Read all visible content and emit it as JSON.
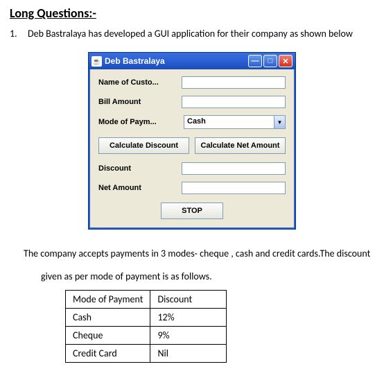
{
  "heading": "Long Questions:-",
  "question": {
    "number": "1.",
    "text": "Deb Bastralaya has developed a GUI application for their company as shown below"
  },
  "window": {
    "title": "Deb Bastralaya",
    "icon_glyph": "☕",
    "buttons": {
      "min": "—",
      "max": "□",
      "close": "✕"
    },
    "fields": {
      "name_label": "Name of Custo...",
      "name_value": "",
      "bill_label": "Bill Amount",
      "bill_value": "",
      "mode_label": "Mode of Paym...",
      "mode_value": "Cash",
      "discount_label": "Discount",
      "discount_value": "",
      "net_label": "Net Amount",
      "net_value": ""
    },
    "buttons_row": {
      "calc_discount": "Calculate Discount",
      "calc_net": "Calculate Net Amount"
    },
    "stop": "STOP"
  },
  "description": {
    "line1": "The company accepts payments in 3 modes- cheque , cash and credit cards.The discount",
    "line2": "given as per mode of payment is as follows."
  },
  "table": {
    "columns": [
      "Mode of Payment",
      "Discount"
    ],
    "rows": [
      [
        "Cash",
        "12%"
      ],
      [
        "Cheque",
        "9%"
      ],
      [
        "Credit Card",
        "Nil"
      ]
    ]
  },
  "colors": {
    "titlebar_start": "#3a6ee0",
    "titlebar_end": "#1b4db6",
    "window_bg": "#ece9d8",
    "border": "#7f9db9",
    "close_bg": "#d43020"
  }
}
